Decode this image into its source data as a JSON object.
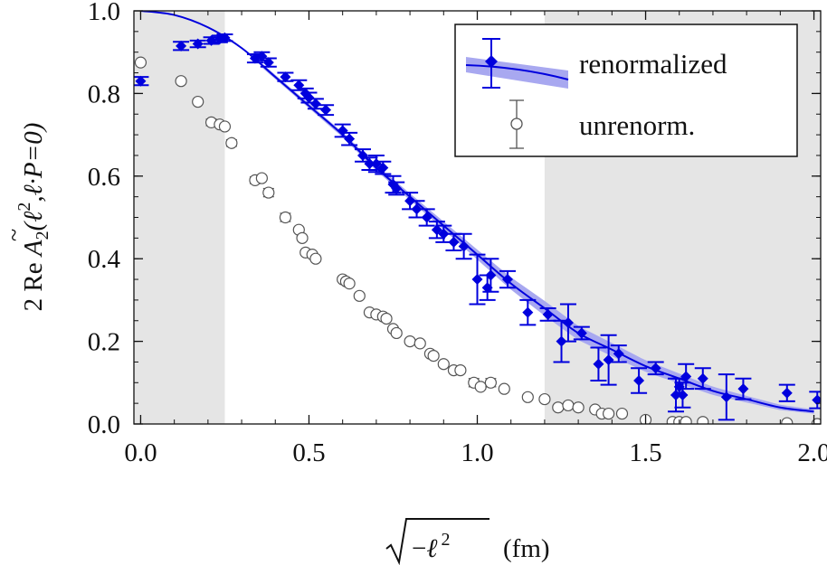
{
  "chart_data": {
    "type": "scatter",
    "title": "",
    "xlabel": "√(−ℓ²)  (fm)",
    "ylabel": "2 Re Ã₂(ℓ², ℓ·P=0)",
    "xlabel_parts": {
      "symbol": "ℓ",
      "superscript": "2",
      "unit": "(fm)"
    },
    "ylabel_parts": {
      "prefix": "2 Re ",
      "A": "A",
      "tilde": "~",
      "sub": "2",
      "args": "(ℓ",
      "sup": "2",
      "rest": ",ℓ·P=0)"
    },
    "xlim": [
      -0.02,
      2.02
    ],
    "ylim": [
      0.0,
      1.0
    ],
    "x_ticks": [
      0.0,
      0.5,
      1.0,
      1.5,
      2.0
    ],
    "x_tick_labels": [
      "0.0",
      "0.5",
      "1.0",
      "1.5",
      "2.0"
    ],
    "y_ticks": [
      0.0,
      0.2,
      0.4,
      0.6,
      0.8,
      1.0
    ],
    "y_tick_labels": [
      "0.0",
      "0.2",
      "0.4",
      "0.6",
      "0.8",
      "1.0"
    ],
    "shaded_regions": [
      {
        "x": [
          -0.02,
          0.25
        ],
        "color": "#e5e5e5"
      },
      {
        "x": [
          1.2,
          2.02
        ],
        "color": "#e5e5e5"
      }
    ],
    "legend": {
      "position": "top-right",
      "entries": [
        {
          "label": "renormalized",
          "marker": "diamond",
          "color": "#0000dd"
        },
        {
          "label": "unrenorm.",
          "marker": "circle",
          "color": "#555555"
        }
      ]
    },
    "fit_curve": {
      "name": "renormalized fit",
      "color": "#0000dd",
      "band_color": "#a8a8f0",
      "x": [
        0.0,
        0.1,
        0.2,
        0.3,
        0.4,
        0.5,
        0.6,
        0.7,
        0.8,
        0.9,
        1.0,
        1.1,
        1.2,
        1.3,
        1.4,
        1.5,
        1.6,
        1.7,
        1.8,
        1.9,
        2.0
      ],
      "y": [
        1.0,
        0.99,
        0.96,
        0.91,
        0.84,
        0.77,
        0.7,
        0.62,
        0.55,
        0.48,
        0.41,
        0.34,
        0.28,
        0.22,
        0.18,
        0.14,
        0.11,
        0.08,
        0.06,
        0.04,
        0.03
      ],
      "band_x": [
        0.36,
        0.6,
        0.8,
        1.0,
        1.2,
        1.4,
        1.6,
        1.8,
        2.0
      ],
      "band_halfwidth": [
        0.005,
        0.006,
        0.008,
        0.012,
        0.018,
        0.016,
        0.012,
        0.008,
        0.005
      ]
    },
    "series": [
      {
        "name": "renormalized",
        "marker": "diamond",
        "color": "#0000dd",
        "points": [
          [
            0.0,
            0.83,
            0.01
          ],
          [
            0.12,
            0.915,
            0.01
          ],
          [
            0.17,
            0.92,
            0.008
          ],
          [
            0.21,
            0.928,
            0.008
          ],
          [
            0.235,
            0.932,
            0.008
          ],
          [
            0.25,
            0.935,
            0.008
          ],
          [
            0.34,
            0.885,
            0.01
          ],
          [
            0.36,
            0.89,
            0.01
          ],
          [
            0.38,
            0.875,
            0.01
          ],
          [
            0.43,
            0.84,
            0.01
          ],
          [
            0.47,
            0.82,
            0.012
          ],
          [
            0.49,
            0.8,
            0.012
          ],
          [
            0.5,
            0.79,
            0.012
          ],
          [
            0.52,
            0.775,
            0.012
          ],
          [
            0.55,
            0.76,
            0.012
          ],
          [
            0.6,
            0.71,
            0.015
          ],
          [
            0.62,
            0.69,
            0.015
          ],
          [
            0.66,
            0.65,
            0.015
          ],
          [
            0.68,
            0.63,
            0.015
          ],
          [
            0.7,
            0.63,
            0.02
          ],
          [
            0.72,
            0.62,
            0.015
          ],
          [
            0.75,
            0.58,
            0.02
          ],
          [
            0.76,
            0.57,
            0.015
          ],
          [
            0.8,
            0.54,
            0.02
          ],
          [
            0.82,
            0.52,
            0.02
          ],
          [
            0.85,
            0.5,
            0.02
          ],
          [
            0.88,
            0.47,
            0.02
          ],
          [
            0.9,
            0.46,
            0.02
          ],
          [
            0.93,
            0.44,
            0.02
          ],
          [
            0.96,
            0.43,
            0.03
          ],
          [
            1.0,
            0.35,
            0.06
          ],
          [
            1.03,
            0.33,
            0.03
          ],
          [
            1.04,
            0.36,
            0.04
          ],
          [
            1.09,
            0.35,
            0.02
          ],
          [
            1.15,
            0.27,
            0.03
          ],
          [
            1.21,
            0.265,
            0.015
          ],
          [
            1.25,
            0.2,
            0.05
          ],
          [
            1.27,
            0.245,
            0.045
          ],
          [
            1.31,
            0.22,
            0.015
          ],
          [
            1.36,
            0.145,
            0.04
          ],
          [
            1.39,
            0.155,
            0.06
          ],
          [
            1.42,
            0.17,
            0.02
          ],
          [
            1.48,
            0.105,
            0.03
          ],
          [
            1.53,
            0.135,
            0.015
          ],
          [
            1.59,
            0.07,
            0.04
          ],
          [
            1.6,
            0.09,
            0.02
          ],
          [
            1.61,
            0.07,
            0.03
          ],
          [
            1.62,
            0.115,
            0.03
          ],
          [
            1.67,
            0.11,
            0.025
          ],
          [
            1.74,
            0.065,
            0.055
          ],
          [
            1.79,
            0.085,
            0.025
          ],
          [
            1.92,
            0.075,
            0.02
          ],
          [
            2.01,
            0.058,
            0.02
          ]
        ]
      },
      {
        "name": "unrenorm.",
        "marker": "circle",
        "color": "#555555",
        "points": [
          [
            0.0,
            0.875,
            0.0
          ],
          [
            0.12,
            0.83,
            0.0
          ],
          [
            0.17,
            0.78,
            0.0
          ],
          [
            0.21,
            0.73,
            0.008
          ],
          [
            0.235,
            0.725,
            0.0
          ],
          [
            0.25,
            0.72,
            0.0
          ],
          [
            0.27,
            0.68,
            0.008
          ],
          [
            0.34,
            0.59,
            0.008
          ],
          [
            0.36,
            0.595,
            0.005
          ],
          [
            0.38,
            0.56,
            0.01
          ],
          [
            0.43,
            0.5,
            0.01
          ],
          [
            0.47,
            0.47,
            0.005
          ],
          [
            0.48,
            0.45,
            0.005
          ],
          [
            0.49,
            0.415,
            0.005
          ],
          [
            0.51,
            0.41,
            0.005
          ],
          [
            0.52,
            0.4,
            0.005
          ],
          [
            0.6,
            0.35,
            0.005
          ],
          [
            0.61,
            0.345,
            0.005
          ],
          [
            0.62,
            0.34,
            0.005
          ],
          [
            0.65,
            0.31,
            0.005
          ],
          [
            0.68,
            0.27,
            0.005
          ],
          [
            0.7,
            0.265,
            0.005
          ],
          [
            0.72,
            0.26,
            0.005
          ],
          [
            0.73,
            0.255,
            0.005
          ],
          [
            0.75,
            0.23,
            0.005
          ],
          [
            0.76,
            0.22,
            0.005
          ],
          [
            0.8,
            0.2,
            0.005
          ],
          [
            0.83,
            0.195,
            0.005
          ],
          [
            0.86,
            0.17,
            0.005
          ],
          [
            0.87,
            0.165,
            0.005
          ],
          [
            0.9,
            0.145,
            0.005
          ],
          [
            0.93,
            0.13,
            0.005
          ],
          [
            0.95,
            0.13,
            0.005
          ],
          [
            0.99,
            0.1,
            0.01
          ],
          [
            1.01,
            0.09,
            0.005
          ],
          [
            1.04,
            0.1,
            0.01
          ],
          [
            1.08,
            0.085,
            0.005
          ],
          [
            1.15,
            0.065,
            0.005
          ],
          [
            1.2,
            0.06,
            0.005
          ],
          [
            1.24,
            0.04,
            0.005
          ],
          [
            1.27,
            0.045,
            0.005
          ],
          [
            1.3,
            0.04,
            0.005
          ],
          [
            1.35,
            0.035,
            0.005
          ],
          [
            1.37,
            0.025,
            0.005
          ],
          [
            1.39,
            0.025,
            0.005
          ],
          [
            1.43,
            0.025,
            0.005
          ],
          [
            1.5,
            0.01,
            0.005
          ],
          [
            1.58,
            0.005,
            0.005
          ],
          [
            1.6,
            0.005,
            0.005
          ],
          [
            1.62,
            0.005,
            0.005
          ],
          [
            1.67,
            0.005,
            0.005
          ],
          [
            1.92,
            0.002,
            0.005
          ],
          [
            2.01,
            0.0,
            0.005
          ]
        ]
      }
    ]
  }
}
